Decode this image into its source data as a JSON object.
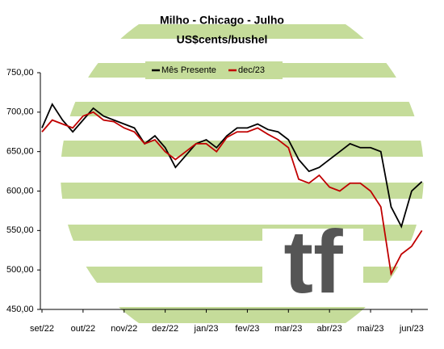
{
  "chart_data": {
    "type": "line",
    "title": "Milho - Chicago - Julho",
    "subtitle": "US$cents/bushel",
    "categories": [
      "set/22",
      null,
      null,
      null,
      "out/22",
      null,
      null,
      null,
      "nov/22",
      null,
      null,
      null,
      "dez/22",
      null,
      null,
      null,
      "jan/23",
      null,
      null,
      null,
      "fev/23",
      null,
      null,
      null,
      "mar/23",
      null,
      null,
      null,
      "abr/23",
      null,
      null,
      null,
      "mai/23",
      null,
      null,
      null,
      "jun/23",
      null
    ],
    "series": [
      {
        "name": "Mês Presente",
        "color": "#000000",
        "values": [
          680,
          710,
          690,
          675,
          690,
          705,
          695,
          690,
          685,
          680,
          660,
          670,
          655,
          630,
          645,
          660,
          665,
          655,
          670,
          680,
          680,
          685,
          678,
          675,
          665,
          640,
          625,
          630,
          640,
          650,
          660,
          655,
          655,
          650,
          580,
          555,
          600,
          612
        ]
      },
      {
        "name": "dec/23",
        "color": "#c00000",
        "values": [
          675,
          690,
          685,
          680,
          695,
          700,
          690,
          688,
          680,
          675,
          660,
          665,
          650,
          640,
          650,
          660,
          660,
          650,
          668,
          675,
          675,
          680,
          672,
          665,
          655,
          615,
          610,
          620,
          605,
          600,
          610,
          610,
          600,
          580,
          495,
          520,
          530,
          550
        ]
      }
    ],
    "ylim": [
      450,
      750
    ],
    "yticks": [
      {
        "value": 450,
        "label": "450,00"
      },
      {
        "value": 500,
        "label": "500,00"
      },
      {
        "value": 550,
        "label": "550,00"
      },
      {
        "value": 600,
        "label": "600,00"
      },
      {
        "value": 650,
        "label": "650,00"
      },
      {
        "value": 700,
        "label": "700,00"
      },
      {
        "value": 750,
        "label": "750,00"
      }
    ],
    "legend": "top"
  }
}
